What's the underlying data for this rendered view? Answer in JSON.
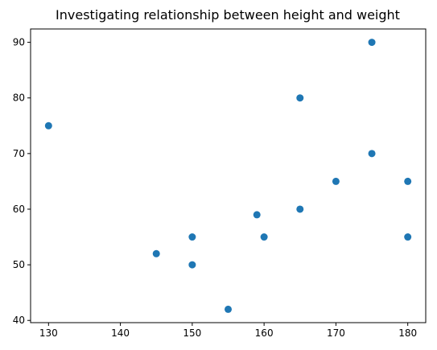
{
  "chart_data": {
    "type": "scatter",
    "title": "Investigating relationship between height and weight",
    "xlabel": "",
    "ylabel": "",
    "xlim": [
      127.5,
      182.5
    ],
    "ylim": [
      39.6,
      92.4
    ],
    "x_ticks": [
      130,
      140,
      150,
      160,
      170,
      180
    ],
    "y_ticks": [
      40,
      50,
      60,
      70,
      80,
      90
    ],
    "grid": false,
    "marker_color": "#1f77b4",
    "points": [
      {
        "x": 130,
        "y": 75
      },
      {
        "x": 145,
        "y": 52
      },
      {
        "x": 150,
        "y": 55
      },
      {
        "x": 150,
        "y": 50
      },
      {
        "x": 155,
        "y": 42
      },
      {
        "x": 159,
        "y": 59
      },
      {
        "x": 160,
        "y": 55
      },
      {
        "x": 165,
        "y": 80
      },
      {
        "x": 165,
        "y": 60
      },
      {
        "x": 170,
        "y": 65
      },
      {
        "x": 175,
        "y": 90
      },
      {
        "x": 175,
        "y": 70
      },
      {
        "x": 180,
        "y": 65
      },
      {
        "x": 180,
        "y": 55
      }
    ]
  }
}
